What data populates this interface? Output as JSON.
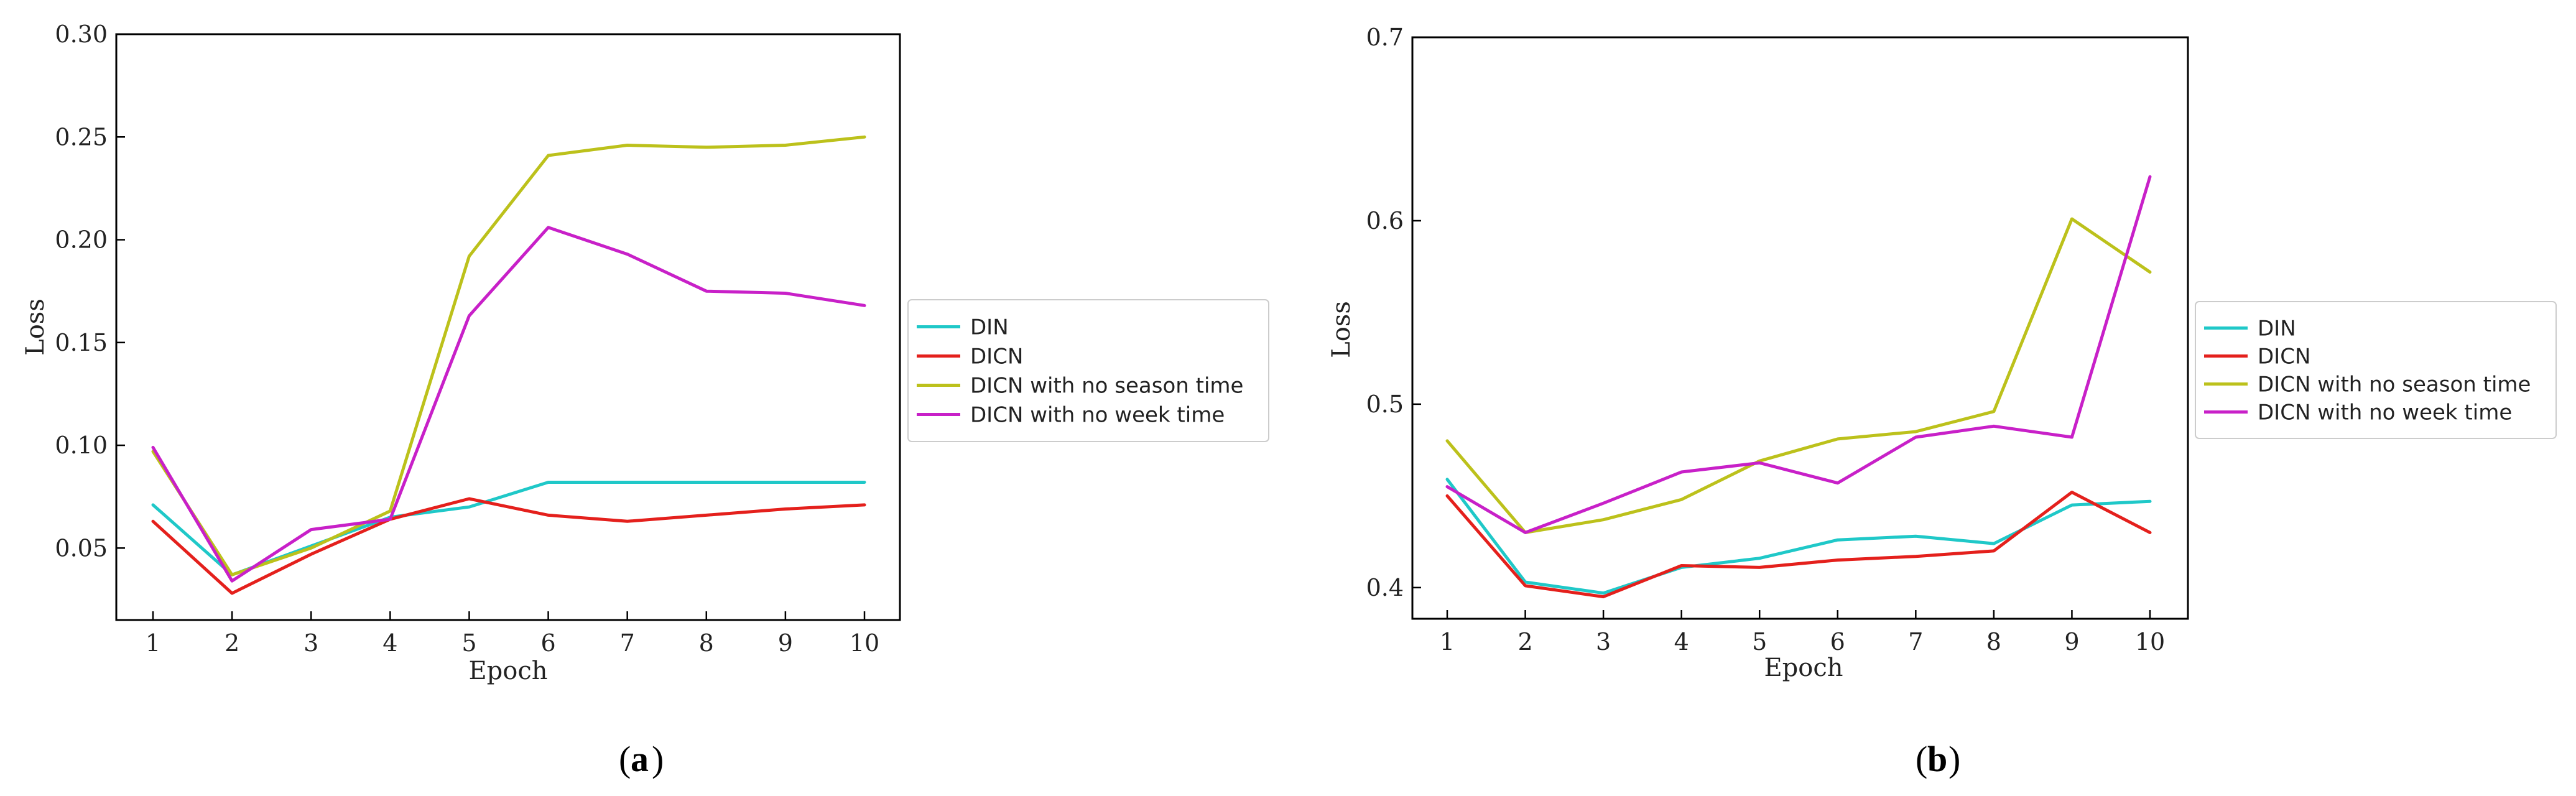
{
  "chart_data": [
    {
      "id": "a",
      "type": "line",
      "caption": "a",
      "xlabel": "Epoch",
      "ylabel": "Loss",
      "x": [
        1,
        2,
        3,
        4,
        5,
        6,
        7,
        8,
        9,
        10
      ],
      "xticks": [
        "1",
        "2",
        "3",
        "4",
        "5",
        "6",
        "7",
        "8",
        "9",
        "10"
      ],
      "ylim": [
        0.015,
        0.3
      ],
      "yticks": [
        0.05,
        0.1,
        0.15,
        0.2,
        0.25,
        0.3
      ],
      "ytick_labels": [
        "0.05",
        "0.10",
        "0.15",
        "0.20",
        "0.25",
        "0.30"
      ],
      "legend_position": "right",
      "series": [
        {
          "name": "DIN",
          "color": "#1fc8c8",
          "values": [
            0.071,
            0.037,
            0.051,
            0.065,
            0.07,
            0.082,
            0.082,
            0.082,
            0.082,
            0.082
          ]
        },
        {
          "name": "DICN",
          "color": "#e4201c",
          "values": [
            0.063,
            0.028,
            0.047,
            0.064,
            0.074,
            0.066,
            0.063,
            0.066,
            0.069,
            0.071
          ]
        },
        {
          "name": "DICN with no season time",
          "color": "#bcc11b",
          "values": [
            0.097,
            0.037,
            0.05,
            0.068,
            0.192,
            0.241,
            0.246,
            0.245,
            0.246,
            0.25
          ]
        },
        {
          "name": "DICN with no week time",
          "color": "#c820c8",
          "values": [
            0.099,
            0.034,
            0.059,
            0.064,
            0.163,
            0.206,
            0.193,
            0.175,
            0.174,
            0.168
          ]
        }
      ]
    },
    {
      "id": "b",
      "type": "line",
      "caption": "b",
      "xlabel": "Epoch",
      "ylabel": "Loss",
      "x": [
        1,
        2,
        3,
        4,
        5,
        6,
        7,
        8,
        9,
        10
      ],
      "xticks": [
        "1",
        "2",
        "3",
        "4",
        "5",
        "6",
        "7",
        "8",
        "9",
        "10"
      ],
      "ylim": [
        0.383,
        0.7
      ],
      "yticks": [
        0.4,
        0.5,
        0.6,
        0.7
      ],
      "ytick_labels": [
        "0.4",
        "0.5",
        "0.6",
        "0.7"
      ],
      "legend_position": "right",
      "series": [
        {
          "name": "DIN",
          "color": "#1fc8c8",
          "values": [
            0.459,
            0.403,
            0.397,
            0.411,
            0.416,
            0.426,
            0.428,
            0.424,
            0.445,
            0.447
          ]
        },
        {
          "name": "DICN",
          "color": "#e4201c",
          "values": [
            0.45,
            0.401,
            0.395,
            0.412,
            0.411,
            0.415,
            0.417,
            0.42,
            0.452,
            0.43
          ]
        },
        {
          "name": "DICN with no season time",
          "color": "#bcc11b",
          "values": [
            0.48,
            0.43,
            0.437,
            0.448,
            0.469,
            0.481,
            0.485,
            0.496,
            0.601,
            0.572
          ]
        },
        {
          "name": "DICN with no week time",
          "color": "#c820c8",
          "values": [
            0.455,
            0.43,
            0.446,
            0.463,
            0.468,
            0.457,
            0.482,
            0.488,
            0.482,
            0.624
          ]
        }
      ]
    }
  ]
}
